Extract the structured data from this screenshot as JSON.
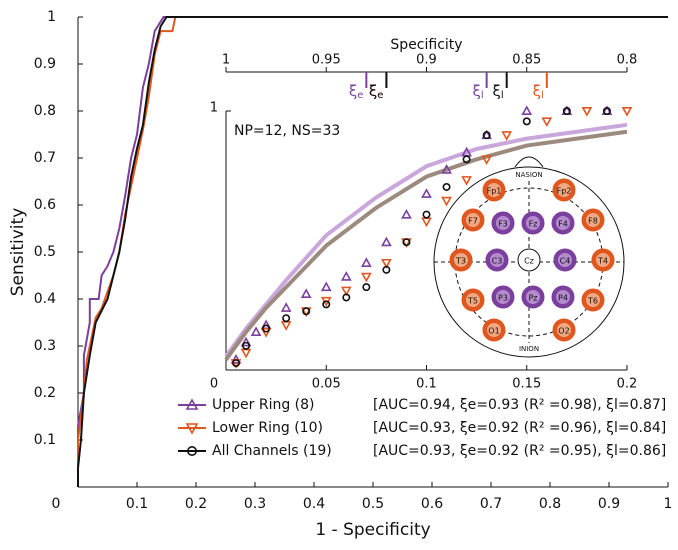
{
  "chart_data": {
    "type": "roc",
    "xlabel": "1 - Specificity",
    "ylabel": "Sensitivity",
    "xlim": [
      0,
      1
    ],
    "ylim": [
      0,
      1
    ],
    "xticks": [
      0,
      0.1,
      0.2,
      0.3,
      0.4,
      0.5,
      0.6,
      0.7,
      0.8,
      0.9,
      1
    ],
    "yticks": [
      0,
      0.1,
      0.2,
      0.3,
      0.4,
      0.5,
      0.6,
      0.7,
      0.8,
      0.9,
      1
    ],
    "series": [
      {
        "name": "Upper Ring (8)",
        "stats": "[AUC=0.94, ξe=0.93 (R² =0.98), ξl=0.87]",
        "color": "#7b3f9e",
        "marker": "triangle-up",
        "x": [
          0,
          0,
          0.01,
          0.01,
          0.02,
          0.02,
          0.035,
          0.04,
          0.05,
          0.06,
          0.07,
          0.08,
          0.09,
          0.1,
          0.11,
          0.12,
          0.13,
          0.145,
          1
        ],
        "values": [
          0,
          0.13,
          0.2,
          0.28,
          0.35,
          0.4,
          0.4,
          0.45,
          0.47,
          0.5,
          0.55,
          0.62,
          0.7,
          0.75,
          0.85,
          0.9,
          0.97,
          1,
          1
        ]
      },
      {
        "name": "Lower Ring (10)",
        "stats": "[AUC=0.93, ξe=0.92 (R² =0.96), ξl=0.84]",
        "color": "#e0561f",
        "marker": "triangle-down",
        "x": [
          0,
          0,
          0.01,
          0.015,
          0.02,
          0.03,
          0.04,
          0.06,
          0.07,
          0.08,
          0.09,
          0.1,
          0.11,
          0.12,
          0.13,
          0.14,
          0.16,
          0.165,
          1
        ],
        "values": [
          0,
          0.1,
          0.2,
          0.27,
          0.3,
          0.36,
          0.38,
          0.45,
          0.5,
          0.58,
          0.64,
          0.7,
          0.76,
          0.83,
          0.92,
          0.97,
          0.97,
          1,
          1
        ]
      },
      {
        "name": "All Channels (19)",
        "stats": "[AUC=0.93, ξe=0.92 (R² =0.95), ξl=0.86]",
        "color": "#111111",
        "marker": "circle",
        "x": [
          0,
          0,
          0.005,
          0.01,
          0.02,
          0.03,
          0.05,
          0.07,
          0.08,
          0.09,
          0.1,
          0.11,
          0.12,
          0.13,
          0.14,
          0.15,
          1
        ],
        "values": [
          0,
          0.04,
          0.1,
          0.2,
          0.28,
          0.35,
          0.4,
          0.5,
          0.57,
          0.66,
          0.72,
          0.77,
          0.86,
          0.93,
          0.98,
          1,
          1
        ]
      }
    ],
    "inset": {
      "annotation": "NP=12, NS=33",
      "xlim": [
        0,
        0.2
      ],
      "ylim": [
        0.25,
        1
      ],
      "xticks": [
        0,
        0.05,
        0.1,
        0.15,
        0.2
      ],
      "yticks": [
        1
      ],
      "x2label": "Specificity",
      "x2lim": [
        1,
        0.8
      ],
      "x2ticks": [
        1,
        0.95,
        0.9,
        0.85,
        0.8
      ],
      "series": [
        {
          "color": "#7b3f9e",
          "marker": "triangle-up",
          "x": [
            0.005,
            0.01,
            0.015,
            0.02,
            0.03,
            0.04,
            0.05,
            0.06,
            0.07,
            0.08,
            0.09,
            0.1,
            0.11,
            0.12,
            0.13,
            0.15,
            0.17,
            0.19
          ],
          "values": [
            0.28,
            0.33,
            0.36,
            0.38,
            0.43,
            0.47,
            0.49,
            0.52,
            0.56,
            0.62,
            0.7,
            0.76,
            0.83,
            0.88,
            0.93,
            1,
            1,
            1
          ]
        },
        {
          "color": "#e0561f",
          "marker": "triangle-down",
          "x": [
            0.005,
            0.01,
            0.02,
            0.03,
            0.04,
            0.05,
            0.06,
            0.07,
            0.08,
            0.09,
            0.1,
            0.11,
            0.12,
            0.13,
            0.14,
            0.16,
            0.18,
            0.2
          ],
          "values": [
            0.27,
            0.3,
            0.36,
            0.38,
            0.42,
            0.45,
            0.48,
            0.52,
            0.56,
            0.62,
            0.68,
            0.74,
            0.8,
            0.86,
            0.93,
            0.97,
            1,
            1
          ]
        },
        {
          "color": "#111111",
          "marker": "circle",
          "x": [
            0.005,
            0.01,
            0.02,
            0.03,
            0.04,
            0.05,
            0.06,
            0.07,
            0.08,
            0.09,
            0.1,
            0.11,
            0.12,
            0.13,
            0.15,
            0.17,
            0.19
          ],
          "values": [
            0.27,
            0.32,
            0.37,
            0.4,
            0.42,
            0.44,
            0.46,
            0.49,
            0.54,
            0.62,
            0.7,
            0.78,
            0.86,
            0.93,
            0.97,
            1,
            1
          ]
        }
      ],
      "fits": [
        {
          "color": "#c9a6dc",
          "x": [
            0,
            0.01,
            0.02,
            0.03,
            0.05,
            0.075,
            0.1,
            0.125,
            0.15,
            0.175,
            0.2
          ],
          "values": [
            0.29,
            0.37,
            0.44,
            0.51,
            0.64,
            0.75,
            0.84,
            0.89,
            0.92,
            0.94,
            0.96
          ]
        },
        {
          "color": "#9c8a7e",
          "x": [
            0,
            0.01,
            0.02,
            0.03,
            0.05,
            0.075,
            0.1,
            0.125,
            0.15,
            0.175,
            0.2
          ],
          "values": [
            0.28,
            0.36,
            0.43,
            0.49,
            0.61,
            0.72,
            0.81,
            0.86,
            0.9,
            0.92,
            0.94
          ]
        }
      ],
      "thresholds": [
        {
          "symbol": "ξ",
          "subscript": "e",
          "value": 0.93,
          "color": "#7b3f9e"
        },
        {
          "symbol": "ξ",
          "subscript": "e",
          "value": 0.92,
          "color": "#e0561f"
        },
        {
          "symbol": "ξ",
          "subscript": "e",
          "value": 0.92,
          "color": "#111111"
        },
        {
          "symbol": "ξ",
          "subscript": "l",
          "value": 0.87,
          "color": "#7b3f9e"
        },
        {
          "symbol": "ξ",
          "subscript": "l",
          "value": 0.86,
          "color": "#111111"
        },
        {
          "symbol": "ξ",
          "subscript": "l",
          "value": 0.84,
          "color": "#e0561f"
        }
      ]
    },
    "head": {
      "top": "NASION",
      "bottom": "INION",
      "electrodes": [
        {
          "label": "Fp1",
          "color": "#e0561f"
        },
        {
          "label": "Fp2",
          "color": "#e0561f"
        },
        {
          "label": "F7",
          "color": "#e0561f"
        },
        {
          "label": "F3",
          "color": "#7b3f9e"
        },
        {
          "label": "Fz",
          "color": "#7b3f9e"
        },
        {
          "label": "F4",
          "color": "#7b3f9e"
        },
        {
          "label": "F8",
          "color": "#e0561f"
        },
        {
          "label": "T3",
          "color": "#e0561f"
        },
        {
          "label": "C3",
          "color": "#7b3f9e"
        },
        {
          "label": "Cz",
          "color": "#ffffff"
        },
        {
          "label": "C4",
          "color": "#7b3f9e"
        },
        {
          "label": "T4",
          "color": "#e0561f"
        },
        {
          "label": "T5",
          "color": "#e0561f"
        },
        {
          "label": "P3",
          "color": "#7b3f9e"
        },
        {
          "label": "Pz",
          "color": "#7b3f9e"
        },
        {
          "label": "P4",
          "color": "#7b3f9e"
        },
        {
          "label": "T6",
          "color": "#e0561f"
        },
        {
          "label": "O1",
          "color": "#e0561f"
        },
        {
          "label": "O2",
          "color": "#e0561f"
        }
      ]
    }
  }
}
